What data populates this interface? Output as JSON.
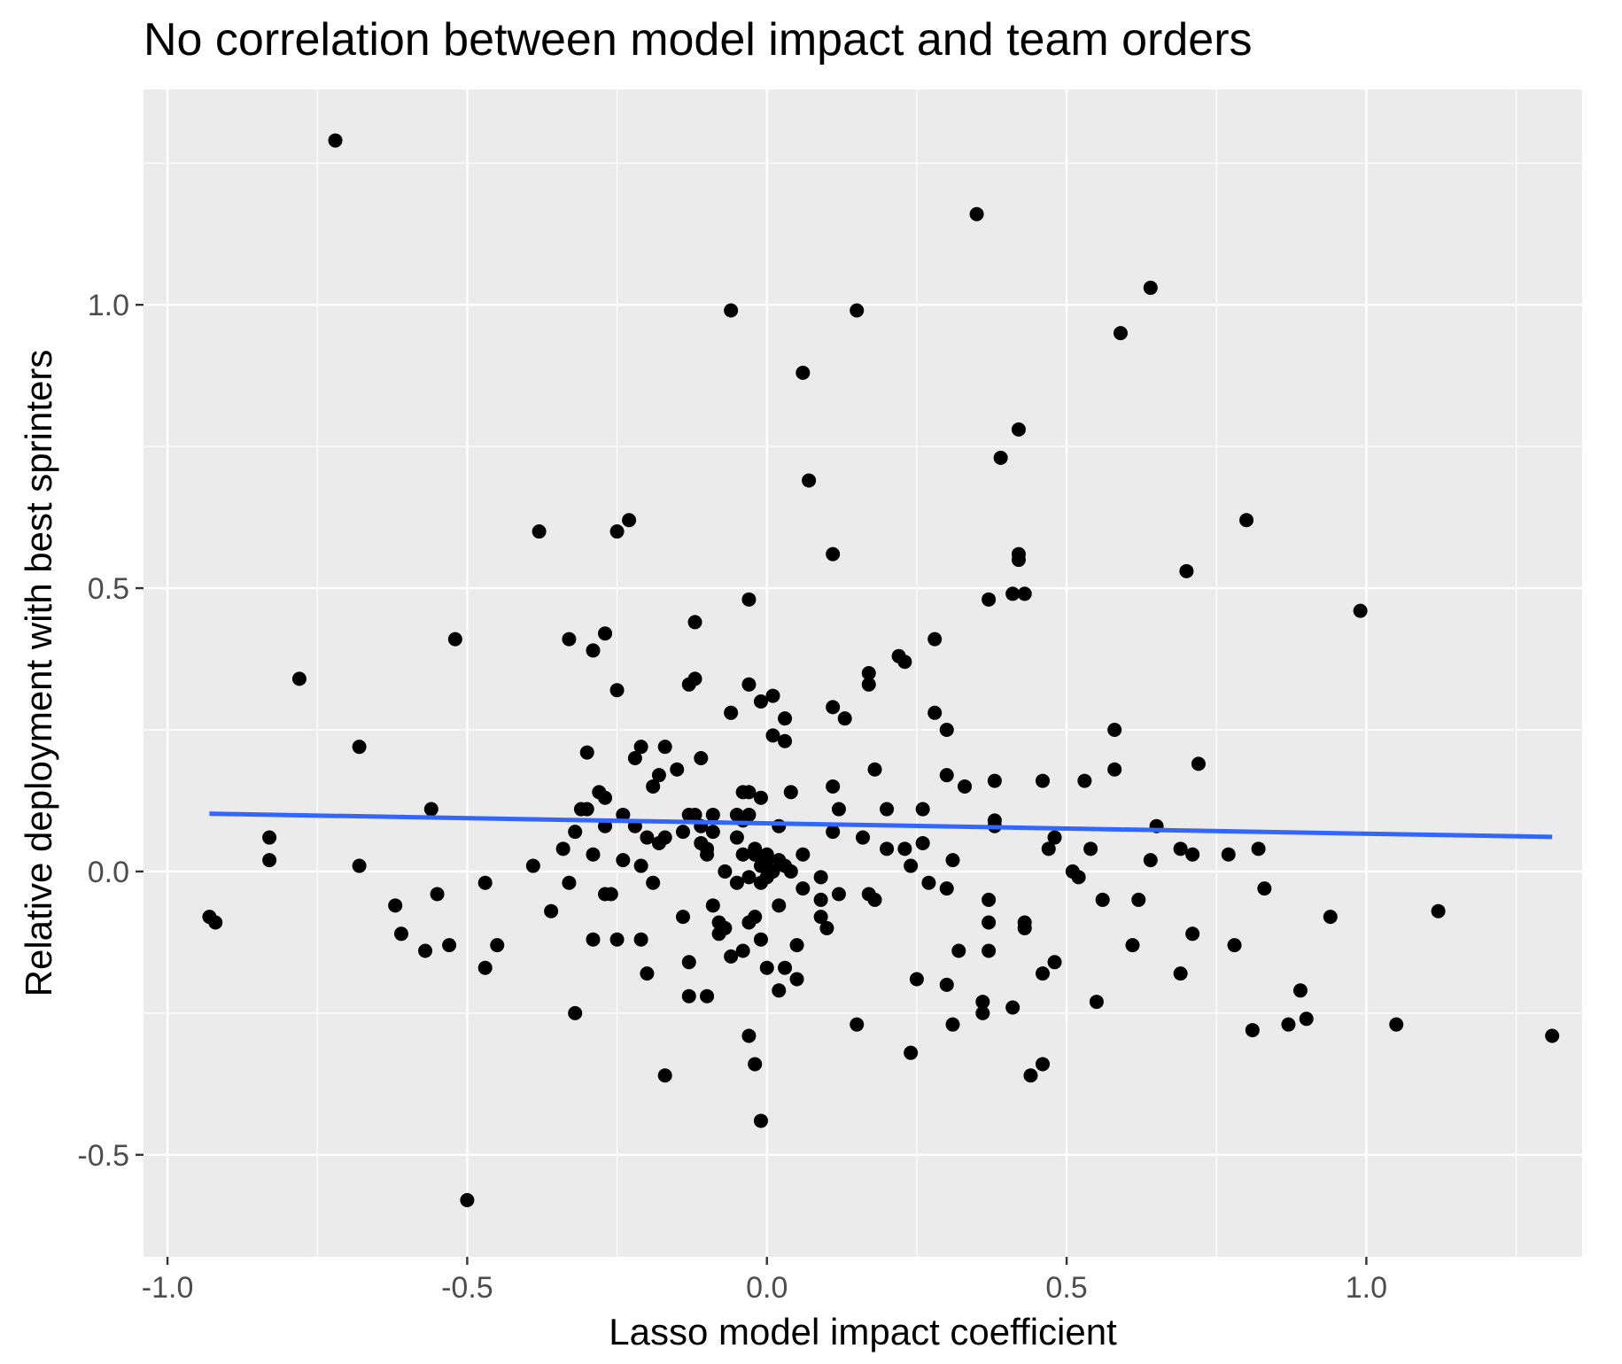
{
  "chart_data": {
    "type": "scatter",
    "title": "No correlation between model impact and team orders",
    "xlabel": "Lasso model impact coefficient",
    "ylabel": "Relative deployment with best sprinters",
    "xlim": [
      -1.04,
      1.36
    ],
    "ylim": [
      -0.68,
      1.38
    ],
    "xticks": [
      -1.0,
      -0.5,
      0.0,
      0.5,
      1.0
    ],
    "xtick_labels": [
      "-1.0",
      "-0.5",
      "0.0",
      "0.5",
      "1.0"
    ],
    "yticks": [
      -0.5,
      0.0,
      0.5,
      1.0
    ],
    "ytick_labels": [
      "-0.5",
      "0.0",
      "0.5",
      "1.0"
    ],
    "grid": true,
    "point_color": "#000000",
    "fit_color": "#3366ff",
    "panel_color": "#ebebeb",
    "fit_line": {
      "x": [
        -0.93,
        1.31
      ],
      "y": [
        0.102,
        0.061
      ]
    },
    "points": [
      [
        -0.72,
        1.29
      ],
      [
        -0.93,
        -0.08
      ],
      [
        -0.92,
        -0.09
      ],
      [
        -0.83,
        0.06
      ],
      [
        -0.83,
        0.02
      ],
      [
        -0.78,
        0.34
      ],
      [
        -0.68,
        0.22
      ],
      [
        -0.68,
        0.01
      ],
      [
        -0.62,
        -0.06
      ],
      [
        -0.61,
        -0.11
      ],
      [
        -0.57,
        -0.14
      ],
      [
        -0.56,
        0.11
      ],
      [
        -0.55,
        -0.04
      ],
      [
        -0.53,
        -0.13
      ],
      [
        -0.52,
        0.41
      ],
      [
        -0.5,
        -0.58
      ],
      [
        -0.47,
        -0.02
      ],
      [
        -0.47,
        -0.17
      ],
      [
        -0.45,
        -0.13
      ],
      [
        -0.39,
        0.01
      ],
      [
        -0.38,
        0.6
      ],
      [
        -0.36,
        -0.07
      ],
      [
        -0.34,
        0.04
      ],
      [
        -0.33,
        -0.02
      ],
      [
        -0.33,
        0.41
      ],
      [
        -0.32,
        0.07
      ],
      [
        -0.32,
        -0.25
      ],
      [
        -0.31,
        0.11
      ],
      [
        -0.3,
        0.21
      ],
      [
        -0.3,
        0.11
      ],
      [
        -0.29,
        0.39
      ],
      [
        -0.29,
        0.03
      ],
      [
        -0.29,
        -0.12
      ],
      [
        -0.28,
        0.14
      ],
      [
        -0.27,
        0.08
      ],
      [
        -0.27,
        0.13
      ],
      [
        -0.27,
        0.42
      ],
      [
        -0.27,
        -0.04
      ],
      [
        -0.26,
        -0.04
      ],
      [
        -0.25,
        0.32
      ],
      [
        -0.25,
        0.6
      ],
      [
        -0.25,
        -0.12
      ],
      [
        -0.24,
        0.02
      ],
      [
        -0.24,
        0.1
      ],
      [
        -0.23,
        0.62
      ],
      [
        -0.22,
        0.2
      ],
      [
        -0.22,
        0.08
      ],
      [
        -0.21,
        0.01
      ],
      [
        -0.21,
        -0.12
      ],
      [
        -0.21,
        0.22
      ],
      [
        -0.2,
        -0.18
      ],
      [
        -0.2,
        0.06
      ],
      [
        -0.19,
        0.15
      ],
      [
        -0.19,
        -0.02
      ],
      [
        -0.18,
        0.17
      ],
      [
        -0.18,
        0.05
      ],
      [
        -0.17,
        0.22
      ],
      [
        -0.17,
        0.06
      ],
      [
        -0.17,
        -0.36
      ],
      [
        -0.15,
        0.18
      ],
      [
        -0.14,
        0.07
      ],
      [
        -0.14,
        -0.08
      ],
      [
        -0.13,
        -0.16
      ],
      [
        -0.13,
        -0.22
      ],
      [
        -0.13,
        0.33
      ],
      [
        -0.13,
        0.1
      ],
      [
        -0.12,
        0.34
      ],
      [
        -0.12,
        0.44
      ],
      [
        -0.12,
        0.1
      ],
      [
        -0.11,
        0.2
      ],
      [
        -0.11,
        0.08
      ],
      [
        -0.11,
        0.05
      ],
      [
        -0.1,
        -0.22
      ],
      [
        -0.1,
        0.04
      ],
      [
        -0.1,
        0.03
      ],
      [
        -0.09,
        -0.06
      ],
      [
        -0.09,
        0.1
      ],
      [
        -0.09,
        0.07
      ],
      [
        -0.08,
        -0.11
      ],
      [
        -0.08,
        -0.09
      ],
      [
        -0.07,
        0.0
      ],
      [
        -0.07,
        -0.1
      ],
      [
        -0.06,
        0.99
      ],
      [
        -0.06,
        0.28
      ],
      [
        -0.06,
        -0.15
      ],
      [
        -0.05,
        0.06
      ],
      [
        -0.05,
        -0.02
      ],
      [
        -0.05,
        0.1
      ],
      [
        -0.04,
        -0.14
      ],
      [
        -0.04,
        0.03
      ],
      [
        -0.04,
        0.09
      ],
      [
        -0.04,
        0.14
      ],
      [
        -0.03,
        0.48
      ],
      [
        -0.03,
        0.14
      ],
      [
        -0.03,
        0.33
      ],
      [
        -0.03,
        0.1
      ],
      [
        -0.03,
        -0.09
      ],
      [
        -0.03,
        -0.29
      ],
      [
        -0.03,
        -0.01
      ],
      [
        -0.02,
        0.04
      ],
      [
        -0.02,
        0.03
      ],
      [
        -0.02,
        -0.08
      ],
      [
        -0.02,
        -0.34
      ],
      [
        -0.01,
        0.3
      ],
      [
        -0.01,
        0.13
      ],
      [
        -0.01,
        0.01
      ],
      [
        -0.01,
        -0.44
      ],
      [
        -0.01,
        -0.02
      ],
      [
        -0.01,
        -0.12
      ],
      [
        0.0,
        0.03
      ],
      [
        0.0,
        0.02
      ],
      [
        0.0,
        -0.17
      ],
      [
        0.0,
        -0.01
      ],
      [
        0.01,
        0.31
      ],
      [
        0.01,
        0.24
      ],
      [
        0.01,
        0.0
      ],
      [
        0.02,
        0.08
      ],
      [
        0.02,
        0.02
      ],
      [
        0.02,
        -0.06
      ],
      [
        0.02,
        -0.21
      ],
      [
        0.03,
        0.27
      ],
      [
        0.03,
        0.01
      ],
      [
        0.03,
        0.23
      ],
      [
        0.03,
        -0.17
      ],
      [
        0.04,
        0.0
      ],
      [
        0.04,
        0.14
      ],
      [
        0.05,
        -0.19
      ],
      [
        0.05,
        -0.13
      ],
      [
        0.06,
        0.88
      ],
      [
        0.06,
        0.03
      ],
      [
        0.06,
        -0.03
      ],
      [
        0.07,
        0.69
      ],
      [
        0.09,
        -0.01
      ],
      [
        0.09,
        -0.05
      ],
      [
        0.09,
        -0.08
      ],
      [
        0.1,
        -0.1
      ],
      [
        0.11,
        0.15
      ],
      [
        0.11,
        0.07
      ],
      [
        0.11,
        0.56
      ],
      [
        0.11,
        0.29
      ],
      [
        0.12,
        -0.04
      ],
      [
        0.12,
        0.11
      ],
      [
        0.13,
        0.27
      ],
      [
        0.15,
        -0.27
      ],
      [
        0.15,
        0.99
      ],
      [
        0.16,
        0.06
      ],
      [
        0.17,
        0.35
      ],
      [
        0.17,
        0.33
      ],
      [
        0.17,
        -0.04
      ],
      [
        0.18,
        0.18
      ],
      [
        0.18,
        -0.05
      ],
      [
        0.2,
        0.11
      ],
      [
        0.2,
        0.04
      ],
      [
        0.22,
        0.38
      ],
      [
        0.23,
        0.04
      ],
      [
        0.23,
        0.37
      ],
      [
        0.24,
        0.01
      ],
      [
        0.24,
        -0.32
      ],
      [
        0.25,
        -0.19
      ],
      [
        0.26,
        0.05
      ],
      [
        0.26,
        0.11
      ],
      [
        0.27,
        -0.02
      ],
      [
        0.28,
        0.41
      ],
      [
        0.28,
        0.28
      ],
      [
        0.3,
        0.25
      ],
      [
        0.3,
        0.17
      ],
      [
        0.3,
        -0.03
      ],
      [
        0.3,
        -0.2
      ],
      [
        0.31,
        0.02
      ],
      [
        0.31,
        -0.27
      ],
      [
        0.32,
        -0.14
      ],
      [
        0.33,
        0.15
      ],
      [
        0.35,
        1.16
      ],
      [
        0.36,
        -0.23
      ],
      [
        0.36,
        -0.25
      ],
      [
        0.37,
        0.48
      ],
      [
        0.37,
        -0.05
      ],
      [
        0.37,
        -0.09
      ],
      [
        0.37,
        -0.14
      ],
      [
        0.38,
        0.08
      ],
      [
        0.38,
        0.09
      ],
      [
        0.38,
        0.16
      ],
      [
        0.39,
        0.73
      ],
      [
        0.41,
        0.49
      ],
      [
        0.41,
        -0.24
      ],
      [
        0.42,
        0.78
      ],
      [
        0.42,
        0.56
      ],
      [
        0.42,
        0.55
      ],
      [
        0.43,
        0.49
      ],
      [
        0.43,
        -0.09
      ],
      [
        0.43,
        -0.1
      ],
      [
        0.44,
        -0.36
      ],
      [
        0.46,
        0.16
      ],
      [
        0.46,
        -0.34
      ],
      [
        0.46,
        -0.18
      ],
      [
        0.47,
        0.04
      ],
      [
        0.48,
        0.06
      ],
      [
        0.48,
        -0.16
      ],
      [
        0.51,
        0.0
      ],
      [
        0.52,
        -0.01
      ],
      [
        0.53,
        0.16
      ],
      [
        0.54,
        0.04
      ],
      [
        0.55,
        -0.23
      ],
      [
        0.56,
        -0.05
      ],
      [
        0.58,
        0.25
      ],
      [
        0.58,
        0.18
      ],
      [
        0.59,
        0.95
      ],
      [
        0.61,
        -0.13
      ],
      [
        0.62,
        -0.05
      ],
      [
        0.64,
        1.03
      ],
      [
        0.64,
        0.02
      ],
      [
        0.65,
        0.08
      ],
      [
        0.69,
        0.04
      ],
      [
        0.69,
        -0.18
      ],
      [
        0.7,
        0.53
      ],
      [
        0.71,
        0.03
      ],
      [
        0.71,
        -0.11
      ],
      [
        0.72,
        0.19
      ],
      [
        0.77,
        0.03
      ],
      [
        0.78,
        -0.13
      ],
      [
        0.8,
        0.62
      ],
      [
        0.81,
        -0.28
      ],
      [
        0.82,
        0.04
      ],
      [
        0.83,
        -0.03
      ],
      [
        0.87,
        -0.27
      ],
      [
        0.89,
        -0.21
      ],
      [
        0.9,
        -0.26
      ],
      [
        0.94,
        -0.08
      ],
      [
        0.99,
        0.46
      ],
      [
        1.05,
        -0.27
      ],
      [
        1.12,
        -0.07
      ],
      [
        1.31,
        -0.29
      ]
    ]
  }
}
